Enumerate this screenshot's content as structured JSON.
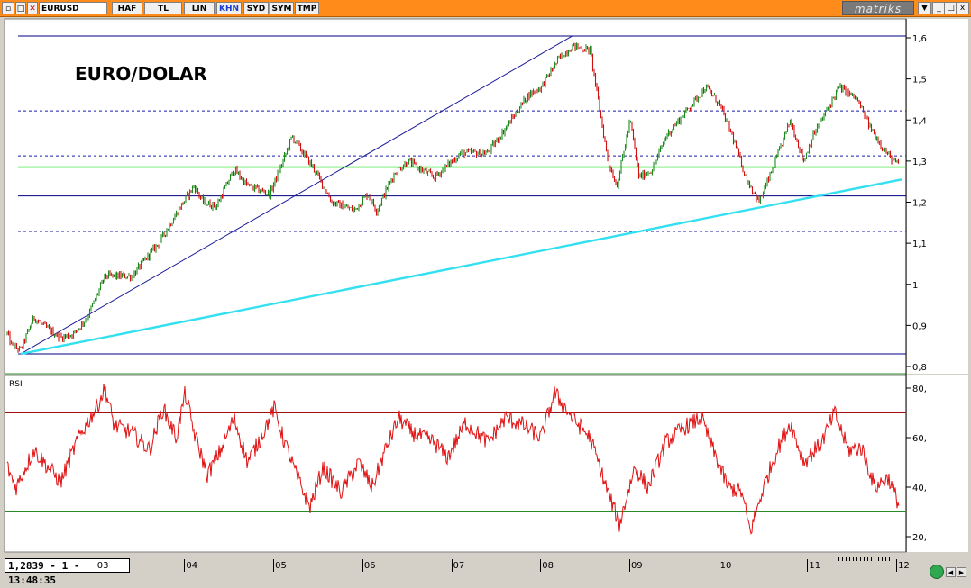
{
  "toolbar": {
    "symbol": "EURUSD",
    "buttons": [
      "HAF",
      "TL",
      "LIN",
      "KHN",
      "SYD",
      "SYM",
      "TMP"
    ],
    "active": "KHN",
    "logo": "matriks"
  },
  "window_buttons": [
    "▼",
    "_",
    "□",
    "x"
  ],
  "status": "1,2839 - 1 - 13:48:35",
  "chart_data": [
    {
      "type": "line",
      "title": "EURO/DOLAR",
      "price_x_range": [
        2002.0,
        2012.05
      ],
      "ylim": [
        0.8,
        1.62
      ],
      "yticks": [
        "1,6",
        "1,5",
        "1,4",
        "1,3",
        "1,2",
        "1,1",
        "1",
        "0,9",
        "0,8"
      ],
      "ytick_values": [
        1.6,
        1.5,
        1.4,
        1.3,
        1.2,
        1.1,
        1.0,
        0.9,
        0.8
      ],
      "xticks": [
        "03",
        "04",
        "05",
        "06",
        "07",
        "08",
        "09",
        "10",
        "11",
        "12"
      ],
      "xtick_values": [
        2003,
        2004,
        2005,
        2006,
        2007,
        2008,
        2009,
        2010,
        2011,
        2012
      ],
      "price_anchors": [
        [
          2002.0,
          0.88
        ],
        [
          2002.05,
          0.85
        ],
        [
          2002.15,
          0.84
        ],
        [
          2002.3,
          0.92
        ],
        [
          2002.4,
          0.9
        ],
        [
          2002.6,
          0.87
        ],
        [
          2002.75,
          0.88
        ],
        [
          2002.9,
          0.92
        ],
        [
          2003.1,
          1.02
        ],
        [
          2003.4,
          1.02
        ],
        [
          2003.7,
          1.1
        ],
        [
          2003.95,
          1.19
        ],
        [
          2004.1,
          1.24
        ],
        [
          2004.2,
          1.2
        ],
        [
          2004.35,
          1.19
        ],
        [
          2004.55,
          1.28
        ],
        [
          2004.7,
          1.24
        ],
        [
          2004.95,
          1.22
        ],
        [
          2005.1,
          1.3
        ],
        [
          2005.2,
          1.36
        ],
        [
          2005.45,
          1.28
        ],
        [
          2005.65,
          1.2
        ],
        [
          2005.9,
          1.18
        ],
        [
          2006.05,
          1.22
        ],
        [
          2006.15,
          1.18
        ],
        [
          2006.35,
          1.27
        ],
        [
          2006.5,
          1.3
        ],
        [
          2006.8,
          1.26
        ],
        [
          2007.1,
          1.32
        ],
        [
          2007.4,
          1.32
        ],
        [
          2007.6,
          1.38
        ],
        [
          2007.85,
          1.46
        ],
        [
          2008.0,
          1.48
        ],
        [
          2008.2,
          1.55
        ],
        [
          2008.35,
          1.58
        ],
        [
          2008.55,
          1.57
        ],
        [
          2008.75,
          1.3
        ],
        [
          2008.85,
          1.24
        ],
        [
          2009.0,
          1.4
        ],
        [
          2009.1,
          1.26
        ],
        [
          2009.25,
          1.28
        ],
        [
          2009.4,
          1.36
        ],
        [
          2009.55,
          1.4
        ],
        [
          2009.85,
          1.48
        ],
        [
          2010.0,
          1.44
        ],
        [
          2010.15,
          1.36
        ],
        [
          2010.3,
          1.26
        ],
        [
          2010.45,
          1.2
        ],
        [
          2010.6,
          1.28
        ],
        [
          2010.8,
          1.4
        ],
        [
          2010.95,
          1.3
        ],
        [
          2011.05,
          1.36
        ],
        [
          2011.2,
          1.42
        ],
        [
          2011.35,
          1.48
        ],
        [
          2011.55,
          1.45
        ],
        [
          2011.7,
          1.38
        ],
        [
          2011.85,
          1.33
        ],
        [
          2011.95,
          1.3
        ],
        [
          2012.05,
          1.29
        ]
      ],
      "horizontal_lines": [
        {
          "y": 1.6045,
          "color": "#000080",
          "style": "solid"
        },
        {
          "y": 1.4222,
          "color": "#1a1aa8",
          "style": "dashed"
        },
        {
          "y": 1.3125,
          "color": "#1a1aa8",
          "style": "dashed"
        },
        {
          "y": 1.2853,
          "color": "#32e632",
          "style": "solid"
        },
        {
          "y": 1.2152,
          "color": "#000080",
          "style": "solid"
        },
        {
          "y": 1.1287,
          "color": "#1a1aa8",
          "style": "dashed"
        },
        {
          "y": 0.8306,
          "color": "#000080",
          "style": "solid"
        }
      ],
      "trend_lines": [
        {
          "x1": 2002.15,
          "y1": 0.8306,
          "x2": 2008.35,
          "y2": 1.6045,
          "color": "#1a1a9a"
        },
        {
          "x1": 2002.15,
          "y1": 0.8306,
          "x2": 2012.05,
          "y2": 1.2553,
          "color": "#33e0f0"
        }
      ]
    },
    {
      "type": "line",
      "title": "RSI",
      "ylim": [
        15,
        85
      ],
      "yticks": [
        "80,",
        "60,",
        "40,",
        "20,"
      ],
      "ytick_values": [
        80,
        60,
        40,
        20
      ],
      "rsi_anchors": [
        [
          2002.0,
          48
        ],
        [
          2002.1,
          40
        ],
        [
          2002.3,
          55
        ],
        [
          2002.6,
          42
        ],
        [
          2002.8,
          60
        ],
        [
          2003.0,
          72
        ],
        [
          2003.1,
          80
        ],
        [
          2003.2,
          65
        ],
        [
          2003.4,
          62
        ],
        [
          2003.6,
          55
        ],
        [
          2003.75,
          72
        ],
        [
          2003.9,
          60
        ],
        [
          2004.0,
          78
        ],
        [
          2004.1,
          62
        ],
        [
          2004.25,
          45
        ],
        [
          2004.4,
          55
        ],
        [
          2004.55,
          68
        ],
        [
          2004.7,
          50
        ],
        [
          2004.85,
          60
        ],
        [
          2005.0,
          72
        ],
        [
          2005.1,
          60
        ],
        [
          2005.25,
          45
        ],
        [
          2005.4,
          32
        ],
        [
          2005.55,
          48
        ],
        [
          2005.75,
          38
        ],
        [
          2005.95,
          50
        ],
        [
          2006.1,
          40
        ],
        [
          2006.25,
          55
        ],
        [
          2006.4,
          68
        ],
        [
          2006.55,
          62
        ],
        [
          2006.8,
          58
        ],
        [
          2006.95,
          52
        ],
        [
          2007.15,
          66
        ],
        [
          2007.4,
          58
        ],
        [
          2007.6,
          68
        ],
        [
          2007.8,
          65
        ],
        [
          2008.0,
          60
        ],
        [
          2008.15,
          78
        ],
        [
          2008.35,
          68
        ],
        [
          2008.55,
          60
        ],
        [
          2008.75,
          38
        ],
        [
          2008.88,
          25
        ],
        [
          2009.05,
          48
        ],
        [
          2009.2,
          40
        ],
        [
          2009.4,
          58
        ],
        [
          2009.6,
          64
        ],
        [
          2009.8,
          68
        ],
        [
          2009.9,
          58
        ],
        [
          2010.1,
          40
        ],
        [
          2010.25,
          38
        ],
        [
          2010.35,
          22
        ],
        [
          2010.5,
          40
        ],
        [
          2010.65,
          55
        ],
        [
          2010.8,
          66
        ],
        [
          2010.95,
          50
        ],
        [
          2011.15,
          58
        ],
        [
          2011.3,
          70
        ],
        [
          2011.45,
          55
        ],
        [
          2011.6,
          56
        ],
        [
          2011.75,
          40
        ],
        [
          2011.9,
          44
        ],
        [
          2012.02,
          33
        ]
      ],
      "horizontal_lines": [
        {
          "y": 70,
          "color": "#a01010",
          "style": "solid"
        },
        {
          "y": 30,
          "color": "#2a8a2a",
          "style": "solid"
        }
      ]
    }
  ]
}
